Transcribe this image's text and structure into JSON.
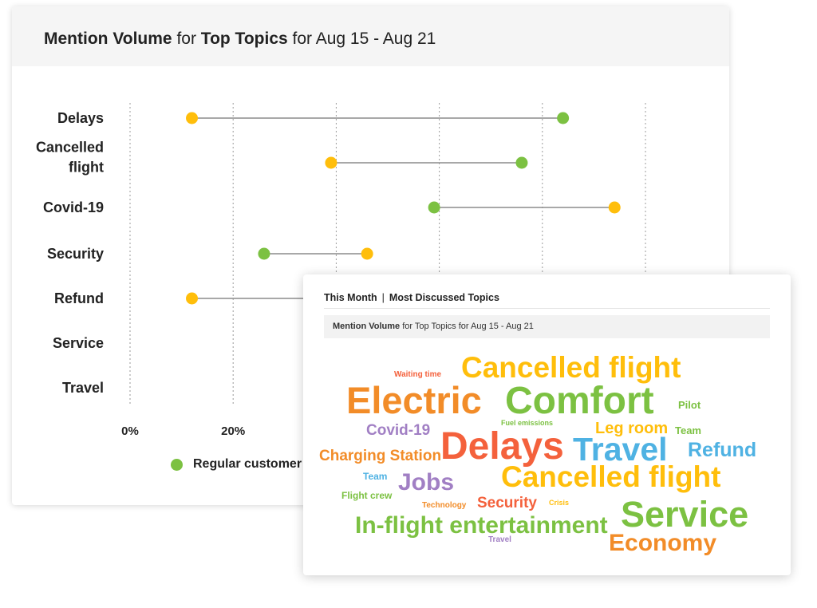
{
  "main_panel": {
    "title_bold_1": "Mention Volume",
    "title_text_1": " for ",
    "title_bold_2": "Top Topics",
    "title_text_2": " for Aug 15 - Aug 21"
  },
  "chart_data": {
    "type": "dumbbell",
    "categories": [
      "Delays",
      "Cancelled flight",
      "Covid-19",
      "Security",
      "Refund",
      "Service",
      "Travel"
    ],
    "category_lines": [
      [
        "Delays"
      ],
      [
        "Cancelled",
        "flight"
      ],
      [
        "Covid-19"
      ],
      [
        "Security"
      ],
      [
        "Refund"
      ],
      [
        "Service"
      ],
      [
        "Travel"
      ]
    ],
    "x_ticks_visible": [
      "0%",
      "20%"
    ],
    "xlim": [
      0,
      100
    ],
    "grid": "vertical dotted",
    "series": [
      {
        "name": "Regular customer",
        "color": "#7cc142",
        "values": [
          84,
          76,
          59,
          26,
          null,
          null,
          null
        ]
      },
      {
        "color": "#ffbe0b",
        "values": [
          12,
          39,
          94,
          46,
          12,
          null,
          null
        ]
      }
    ],
    "legend": {
      "position": "bottom-left",
      "visible_label": "Regular customer"
    }
  },
  "cloud_panel": {
    "header_left": "This Month",
    "header_sep": "|",
    "header_right": "Most Discussed Topics",
    "sub_bold": "Mention Volume",
    "sub_text": " for Top Topics for Aug 15 - Aug 21",
    "words": [
      {
        "text": "Waiting time",
        "color": "#f4613c"
      },
      {
        "text": "Cancelled flight",
        "color": "#ffbe0b"
      },
      {
        "text": "Electric",
        "color": "#f28c28"
      },
      {
        "text": "Comfort",
        "color": "#7cc142"
      },
      {
        "text": "Pilot",
        "color": "#7cc142"
      },
      {
        "text": "Fuel emissions",
        "color": "#7cc142"
      },
      {
        "text": "Leg room",
        "color": "#ffbe0b"
      },
      {
        "text": "Team",
        "color": "#7cc142"
      },
      {
        "text": "Covid-19",
        "color": "#a17fc4"
      },
      {
        "text": "Delays",
        "color": "#f4613c"
      },
      {
        "text": "Travel",
        "color": "#4fb2e3"
      },
      {
        "text": "Refund",
        "color": "#4fb2e3"
      },
      {
        "text": "Charging Station",
        "color": "#f28c28"
      },
      {
        "text": "Team",
        "color": "#4fb2e3"
      },
      {
        "text": "Jobs",
        "color": "#a17fc4"
      },
      {
        "text": "Cancelled flight",
        "color": "#ffbe0b"
      },
      {
        "text": "Flight crew",
        "color": "#7cc142"
      },
      {
        "text": "Technology",
        "color": "#f28c28"
      },
      {
        "text": "Security",
        "color": "#f4613c"
      },
      {
        "text": "Crisis",
        "color": "#ffbe0b"
      },
      {
        "text": "Service",
        "color": "#7cc142"
      },
      {
        "text": "In-flight entertainment",
        "color": "#7cc142"
      },
      {
        "text": "Travel",
        "color": "#a17fc4"
      },
      {
        "text": "Economy",
        "color": "#f28c28"
      }
    ]
  }
}
